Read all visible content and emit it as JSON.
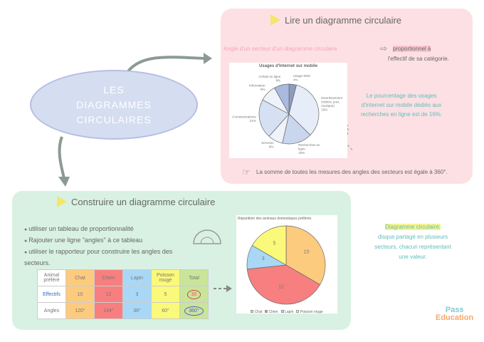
{
  "center": {
    "line1": "LES",
    "line2": "DIAGRAMMES",
    "line3": "CIRCULAIRES"
  },
  "read": {
    "title": "Lire un diagramme circulaire",
    "angle_text": "Angle d'un secteur d'un diagramme circulaire",
    "prop_text": "proportionnel à",
    "prop_text2": "l'effectif de sa catégorie.",
    "note": "Le pourcentage des usages d'internet sur mobile dédiés aux recherches en ligne est de 16%.",
    "sum": "La somme de toutes les mesures des angles des secteurs est égale à 360°."
  },
  "build": {
    "title": "Construire un diagramme circulaire",
    "steps": [
      "utiliser un tableau de proportionnalité",
      "Rajouter une ligne \"angles\" à ce tableau",
      "utiliser le rapporteur pour construire les angles des secteurs."
    ],
    "table": {
      "headers": [
        "Animal préféré",
        "Chat",
        "Chien",
        "Lapin",
        "Poisson rouge",
        "Total"
      ],
      "rows": [
        [
          "Effectifs",
          "10",
          "12",
          "3",
          "5",
          "30"
        ],
        [
          "Angles",
          "120°",
          "144°",
          "36°",
          "60°",
          "360°"
        ]
      ],
      "colors": [
        "#fff",
        "#fccb7e",
        "#f77f7f",
        "#a8d8f5",
        "#fbf97a",
        "#c9e59a"
      ]
    }
  },
  "definition": {
    "term": "Diagramme circulaire:",
    "text": "disque partagé en plusieurs secteurs, chacun représentant une valeur."
  },
  "logo": {
    "top": "Pass",
    "bottom": "Education"
  },
  "watermark": "Pass-education",
  "chart_data": [
    {
      "type": "pie",
      "title": "Usages d'Internet sur mobile",
      "labels": [
        "Usage SMS",
        "Divertissement (vidéos, jeux, musique)",
        "Recherches en ligne",
        "Services",
        "Communications",
        "Information",
        "Achats en ligne"
      ],
      "values": [
        4,
        33,
        16,
        8,
        21,
        9,
        8
      ],
      "unit": "%",
      "colors": [
        "#8d9bbd",
        "#e6ecf8",
        "#c9d6ee",
        "#f0f3fa",
        "#d6e0f3",
        "#eef2fa",
        "#a9b9e0"
      ]
    },
    {
      "type": "pie",
      "title": "Répartition des animaux domestiques préférés",
      "labels": [
        "Chat",
        "Chien",
        "Lapin",
        "Poisson rouge"
      ],
      "values": [
        10,
        12,
        3,
        5
      ],
      "colors": [
        "#fccb7e",
        "#f77f7f",
        "#a8d8f5",
        "#fbf97a"
      ],
      "legend": "bottom"
    }
  ]
}
